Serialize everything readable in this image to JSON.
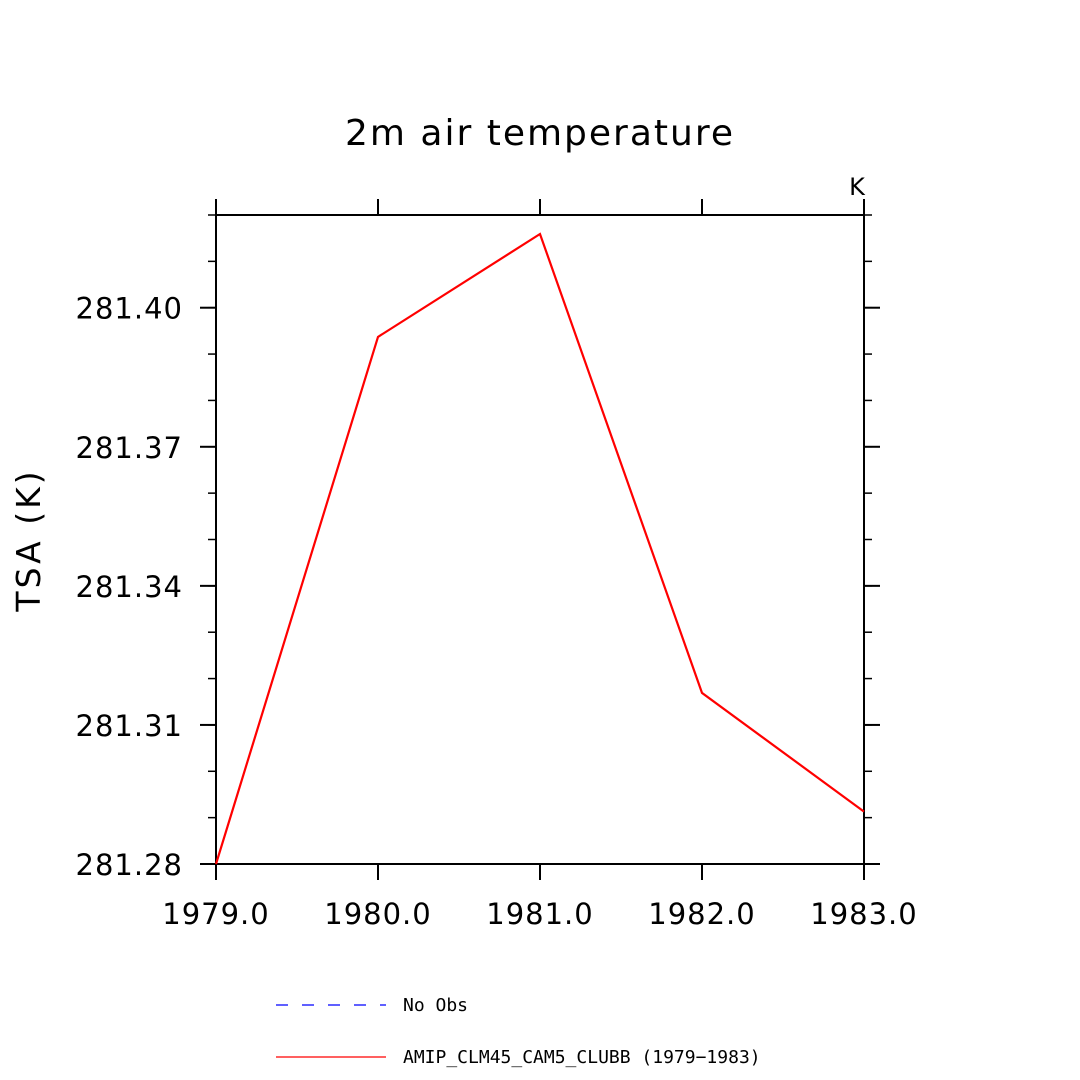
{
  "chart_data": {
    "type": "line",
    "title": "2m air temperature",
    "ylabel": "TSA  (K)",
    "xlabel": "",
    "units_label": "K",
    "xlim": [
      1979,
      1983
    ],
    "ylim": [
      281.28,
      281.42
    ],
    "x_ticks": [
      "1979.0",
      "1980.0",
      "1981.0",
      "1982.0",
      "1983.0"
    ],
    "y_ticks": [
      "281.28",
      "281.31",
      "281.34",
      "281.37",
      "281.40"
    ],
    "x_tick_values": [
      1979,
      1980,
      1981,
      1982,
      1983
    ],
    "y_tick_values": [
      281.28,
      281.31,
      281.34,
      281.37,
      281.4
    ],
    "grid": false,
    "legend_position": "bottom",
    "series": [
      {
        "name": "AMIP_CLM45_CAM5_CLUBB (1979-1983)",
        "color": "#ff0000",
        "style": "solid",
        "x": [
          1979,
          1980,
          1981,
          1982,
          1983
        ],
        "y": [
          281.28,
          281.3937,
          281.4159,
          281.3169,
          281.2913
        ]
      }
    ],
    "legend": [
      {
        "label": "No Obs",
        "color": "#0000ff",
        "style": "dashed"
      },
      {
        "label": "AMIP_CLM45_CAM5_CLUBB (1979−1983)",
        "color": "#ff0000",
        "style": "solid"
      }
    ]
  }
}
